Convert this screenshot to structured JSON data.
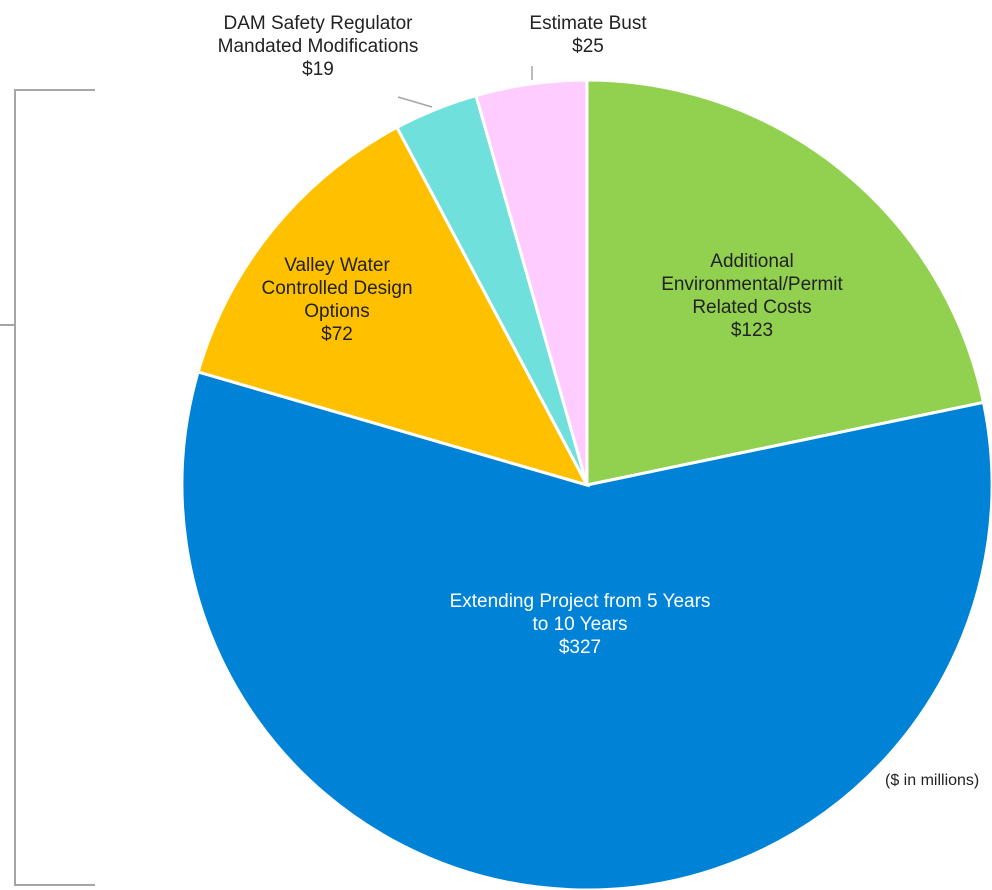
{
  "chart_data": {
    "type": "pie",
    "categories": [
      "Additional Environmental/Permit Related Costs",
      "Extending Project from 5 Years to 10 Years",
      "Valley Water Controlled Design Options",
      "DAM Safety Regulator Mandated Modifications",
      "Estimate Bust"
    ],
    "values": [
      123,
      327,
      72,
      19,
      25
    ],
    "value_labels": [
      "$123",
      "$327",
      "$72",
      "$19",
      "$25"
    ],
    "colors": [
      "#92d050",
      "#0083d6",
      "#ffc000",
      "#6fe0dc",
      "#ffccff"
    ],
    "unit_note": "($ in millions)"
  }
}
